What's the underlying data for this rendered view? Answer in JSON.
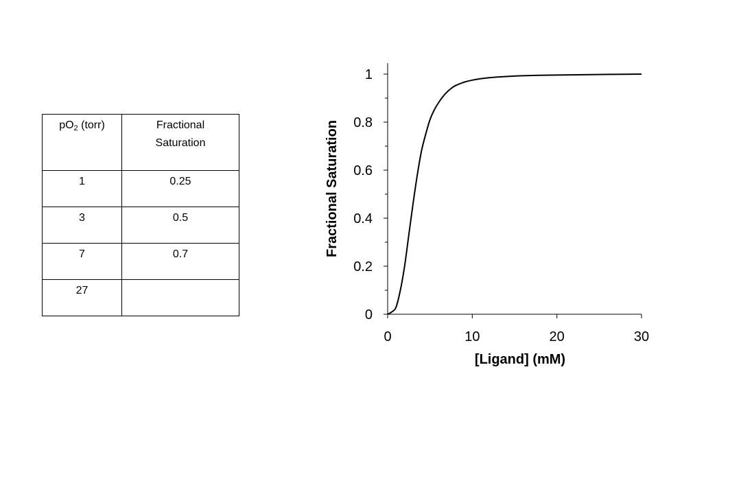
{
  "table": {
    "header": {
      "col1_main": "pO",
      "col1_sub": "2",
      "col1_rest": " (torr)",
      "col2_line1": "Fractional",
      "col2_line2": "Saturation"
    },
    "rows": [
      {
        "po2": "1",
        "saturation": "0.25"
      },
      {
        "po2": "3",
        "saturation": "0.5"
      },
      {
        "po2": "7",
        "saturation": "0.7"
      },
      {
        "po2": "27",
        "saturation": ""
      }
    ]
  },
  "chart_data": {
    "type": "line",
    "title": "",
    "xlabel": "[Ligand] (mM)",
    "ylabel": "Fractional Saturation",
    "xlim": [
      0,
      30
    ],
    "ylim": [
      0,
      1
    ],
    "x_ticks": [
      "0",
      "10",
      "20",
      "30"
    ],
    "y_ticks": [
      "0",
      "0.2",
      "0.4",
      "0.6",
      "0.8",
      "1"
    ],
    "grid": false,
    "legend": "none",
    "series": [
      {
        "x": [
          0,
          0.5,
          1,
          1.5,
          2,
          2.5,
          3,
          3.5,
          4,
          4.5,
          5,
          5.5,
          6,
          6.5,
          7,
          7.5,
          8,
          9,
          10,
          12,
          14,
          16,
          18,
          20,
          24,
          30
        ],
        "y": [
          0,
          0.01,
          0.03,
          0.1,
          0.2,
          0.33,
          0.46,
          0.58,
          0.68,
          0.75,
          0.81,
          0.85,
          0.88,
          0.905,
          0.925,
          0.94,
          0.952,
          0.966,
          0.975,
          0.985,
          0.99,
          0.993,
          0.995,
          0.996,
          0.998,
          1.0
        ],
        "color": "#000000"
      }
    ]
  }
}
